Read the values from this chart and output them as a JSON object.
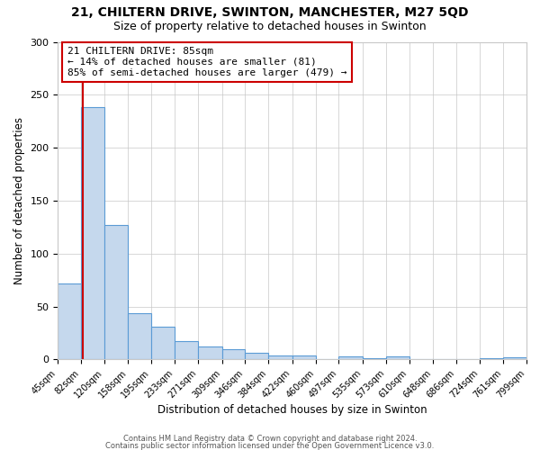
{
  "title_line1": "21, CHILTERN DRIVE, SWINTON, MANCHESTER, M27 5QD",
  "title_line2": "Size of property relative to detached houses in Swinton",
  "xlabel": "Distribution of detached houses by size in Swinton",
  "ylabel": "Number of detached properties",
  "bar_color": "#c5d8ed",
  "bar_edge_color": "#5b9bd5",
  "bin_edges": [
    45,
    82,
    120,
    158,
    195,
    233,
    271,
    309,
    346,
    384,
    422,
    460,
    497,
    535,
    573,
    610,
    648,
    686,
    724,
    761,
    799
  ],
  "bin_labels": [
    "45sqm",
    "82sqm",
    "120sqm",
    "158sqm",
    "195sqm",
    "233sqm",
    "271sqm",
    "309sqm",
    "346sqm",
    "384sqm",
    "422sqm",
    "460sqm",
    "497sqm",
    "535sqm",
    "573sqm",
    "610sqm",
    "648sqm",
    "686sqm",
    "724sqm",
    "761sqm",
    "799sqm"
  ],
  "counts": [
    72,
    238,
    127,
    44,
    31,
    17,
    12,
    10,
    6,
    4,
    4,
    0,
    3,
    1,
    3,
    0,
    0,
    0,
    1,
    2
  ],
  "property_size": 85,
  "vline_x": 85,
  "vline_color": "#cc0000",
  "annotation_title": "21 CHILTERN DRIVE: 85sqm",
  "annotation_line1": "← 14% of detached houses are smaller (81)",
  "annotation_line2": "85% of semi-detached houses are larger (479) →",
  "annotation_box_color": "#ffffff",
  "annotation_box_edge_color": "#cc0000",
  "ylim": [
    0,
    300
  ],
  "yticks": [
    0,
    50,
    100,
    150,
    200,
    250,
    300
  ],
  "footer1": "Contains HM Land Registry data © Crown copyright and database right 2024.",
  "footer2": "Contains public sector information licensed under the Open Government Licence v3.0.",
  "background_color": "#ffffff",
  "grid_color": "#c8c8c8"
}
